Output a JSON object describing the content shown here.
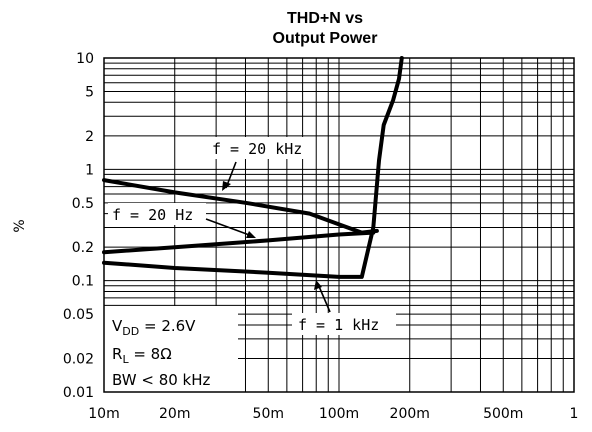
{
  "chart_data": {
    "type": "line",
    "title": [
      "THD+N vs",
      "Output Power"
    ],
    "ylabel": "%",
    "xlabel": "",
    "xscale": "log",
    "yscale": "log",
    "xlim": [
      0.01,
      1
    ],
    "ylim": [
      0.01,
      10
    ],
    "grid": true,
    "x_ticks": [
      {
        "v": 0.01,
        "label": "10m"
      },
      {
        "v": 0.02,
        "label": "20m"
      },
      {
        "v": 0.05,
        "label": "50m"
      },
      {
        "v": 0.1,
        "label": "100m"
      },
      {
        "v": 0.2,
        "label": "200m"
      },
      {
        "v": 0.5,
        "label": "500m"
      },
      {
        "v": 1,
        "label": "1"
      }
    ],
    "y_ticks": [
      {
        "v": 10,
        "label": "10"
      },
      {
        "v": 5,
        "label": "5"
      },
      {
        "v": 2,
        "label": "2"
      },
      {
        "v": 1,
        "label": "1"
      },
      {
        "v": 0.5,
        "label": "0.5"
      },
      {
        "v": 0.2,
        "label": "0.2"
      },
      {
        "v": 0.1,
        "label": "0.1"
      },
      {
        "v": 0.05,
        "label": "0.05"
      },
      {
        "v": 0.02,
        "label": "0.02"
      },
      {
        "v": 0.01,
        "label": "0.01"
      }
    ],
    "series": [
      {
        "name": "f = 20 kHz",
        "x": [
          0.01,
          0.02,
          0.04,
          0.075,
          0.1,
          0.125,
          0.145
        ],
        "y": [
          0.8,
          0.62,
          0.5,
          0.4,
          0.32,
          0.27,
          0.28
        ]
      },
      {
        "name": "f = 20 Hz",
        "x": [
          0.01,
          0.02,
          0.05,
          0.1,
          0.14
        ],
        "y": [
          0.18,
          0.2,
          0.23,
          0.26,
          0.27
        ]
      },
      {
        "name": "f = 1 kHz",
        "x": [
          0.01,
          0.02,
          0.05,
          0.1,
          0.125,
          0.14,
          0.148,
          0.155,
          0.17,
          0.18,
          0.185
        ],
        "y": [
          0.145,
          0.13,
          0.118,
          0.108,
          0.108,
          0.3,
          1.2,
          2.5,
          4.2,
          6.5,
          10
        ]
      }
    ],
    "annotations": {
      "f20k": "f  =  20 kHz",
      "f20": "f  =  20 Hz",
      "f1k": "f  =  1 kHz"
    },
    "legend": {
      "vdd_sym": "V",
      "vdd_sub": "DD",
      "vdd_val": " =  2.6V",
      "rl_sym": "R",
      "rl_sub": "L",
      "rl_val": " =  8Ω",
      "bw": "BW  <  80 kHz"
    }
  }
}
